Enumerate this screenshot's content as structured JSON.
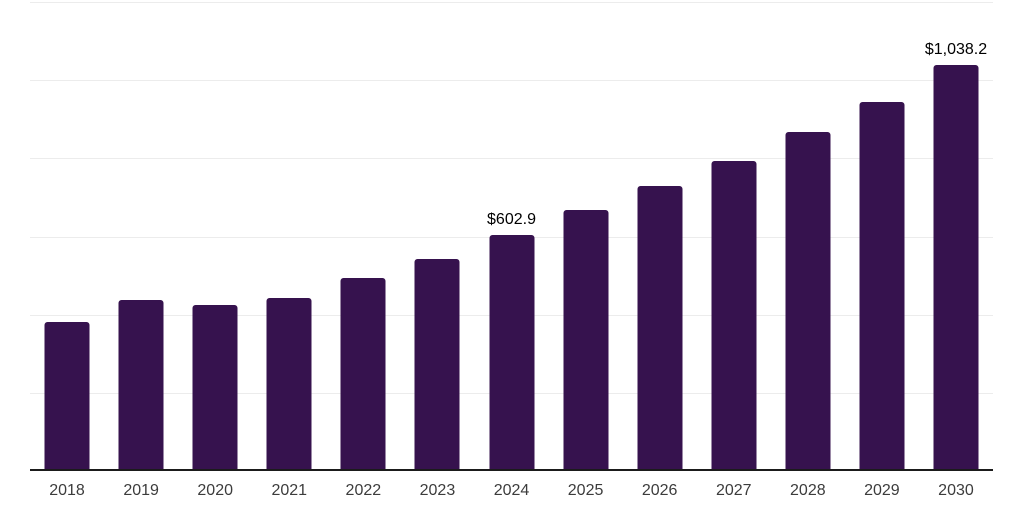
{
  "chart": {
    "background_color": "#ffffff",
    "bar_color": "#36124E",
    "gridline_color": "#ececec",
    "axis_line_color": "#1b1b1b",
    "tick_label_color": "#3c3c3c",
    "value_label_color": "#000000"
  },
  "chart_data": {
    "type": "bar",
    "title": "",
    "xlabel": "",
    "ylabel": "",
    "categories": [
      "2018",
      "2019",
      "2020",
      "2021",
      "2022",
      "2023",
      "2024",
      "2025",
      "2026",
      "2027",
      "2028",
      "2029",
      "2030"
    ],
    "values": [
      382,
      438,
      425,
      443,
      493,
      543,
      602.9,
      668,
      730,
      794,
      867,
      944,
      1038.2
    ],
    "value_labels": {
      "2024": "$602.9",
      "2030": "$1,038.2"
    },
    "ylim": [
      0,
      1200
    ],
    "gridline_step": 200,
    "grid": "horizontal",
    "y_tick_labels_visible": false,
    "legend_position": "none"
  }
}
